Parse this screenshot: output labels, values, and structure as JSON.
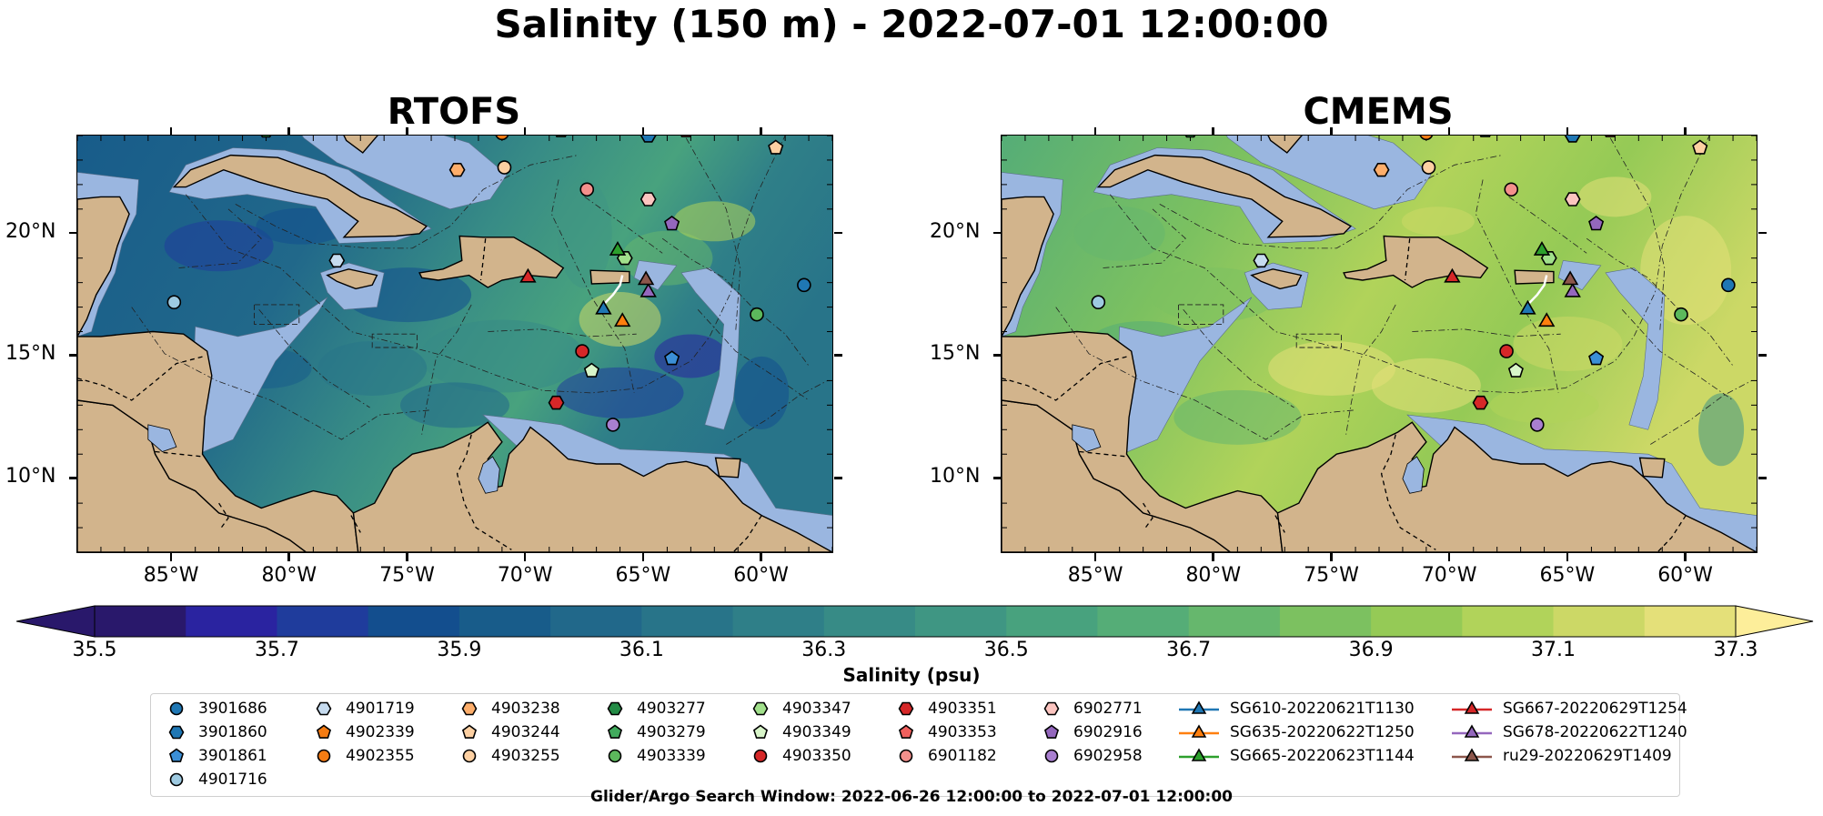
{
  "title": "Salinity (150 m) - 2022-07-01 12:00:00",
  "panels": [
    {
      "title": "RTOFS",
      "scheme": "rtofs"
    },
    {
      "title": "CMEMS",
      "scheme": "cmems"
    }
  ],
  "map": {
    "lon_range": [
      -89,
      -57
    ],
    "lat_range": [
      7,
      24
    ],
    "lon_ticks": [
      {
        "value": -85,
        "label": "85°W"
      },
      {
        "value": -80,
        "label": "80°W"
      },
      {
        "value": -75,
        "label": "75°W"
      },
      {
        "value": -70,
        "label": "70°W"
      },
      {
        "value": -65,
        "label": "65°W"
      },
      {
        "value": -60,
        "label": "60°W"
      }
    ],
    "lat_ticks": [
      {
        "value": 20,
        "label": "20°N"
      },
      {
        "value": 15,
        "label": "15°N"
      },
      {
        "value": 10,
        "label": "10°N"
      }
    ],
    "colors": {
      "land": "#d2b48c",
      "shelf": "#9ab6e0",
      "deep": "#2b1d6b"
    }
  },
  "colorbar": {
    "label": "Salinity (psu)",
    "vmin": 35.5,
    "vmax": 37.3,
    "step": 0.1,
    "ticks": [
      "35.5",
      "35.7",
      "35.9",
      "36.1",
      "36.3",
      "36.5",
      "36.7",
      "36.9",
      "37.1",
      "37.3"
    ],
    "colormap": "haline",
    "colors": [
      "#29186b",
      "#2a23a0",
      "#1f3c9c",
      "#134e8e",
      "#185c8a",
      "#21688a",
      "#287489",
      "#2f7f88",
      "#378b86",
      "#3f9683",
      "#48a27e",
      "#55ad77",
      "#66b76d",
      "#7cc160",
      "#95ca56",
      "#b1d35a",
      "#ccd866",
      "#e4e079",
      "#fdee9a"
    ]
  },
  "observations": [
    {
      "id": "3901686",
      "marker": "circle",
      "color": "#1f77b4",
      "lon": -58.2,
      "lat": 17.9
    },
    {
      "id": "3901860",
      "marker": "hexagon",
      "color": "#1f77b4",
      "lon": -64.8,
      "lat": 24.0
    },
    {
      "id": "3901861",
      "marker": "pentagon",
      "color": "#3b8fd6",
      "lon": -63.8,
      "lat": 14.9
    },
    {
      "id": "4901716",
      "marker": "circle",
      "color": "#9ecae1",
      "lon": -84.9,
      "lat": 17.2
    },
    {
      "id": "4901719",
      "marker": "hexagon",
      "color": "#c6dbef",
      "lon": -78.0,
      "lat": 18.9
    },
    {
      "id": "4902339",
      "marker": "pentagon",
      "color": "#f57c13",
      "lon": -70.2,
      "lat": 24.3
    },
    {
      "id": "4902355",
      "marker": "circle",
      "color": "#f57c13",
      "lon": -71.0,
      "lat": 24.1
    },
    {
      "id": "4903238",
      "marker": "hexagon",
      "color": "#fdae6b",
      "lon": -72.9,
      "lat": 22.6
    },
    {
      "id": "4903244",
      "marker": "pentagon",
      "color": "#fdd0a2",
      "lon": -59.4,
      "lat": 23.5
    },
    {
      "id": "4903255",
      "marker": "circle",
      "color": "#fdd0a2",
      "lon": -70.9,
      "lat": 22.7
    },
    {
      "id": "4903277",
      "marker": "hexagon",
      "color": "#238b45",
      "lon": -81.0,
      "lat": 24.2
    },
    {
      "id": "4903279",
      "marker": "pentagon",
      "color": "#41ab5d",
      "lon": -68.5,
      "lat": 24.2
    },
    {
      "id": "4903339",
      "marker": "circle",
      "color": "#5cb85c",
      "lon": -60.2,
      "lat": 16.7
    },
    {
      "id": "4903347",
      "marker": "hexagon",
      "color": "#a1e08b",
      "lon": -65.8,
      "lat": 19.0
    },
    {
      "id": "4903349",
      "marker": "pentagon",
      "color": "#d8f5c9",
      "lon": -67.2,
      "lat": 14.4
    },
    {
      "id": "4903350",
      "marker": "circle",
      "color": "#d62728",
      "lon": -67.6,
      "lat": 15.2
    },
    {
      "id": "4903351",
      "marker": "hexagon",
      "color": "#d62728",
      "lon": -68.7,
      "lat": 13.1
    },
    {
      "id": "4903353",
      "marker": "pentagon",
      "color": "#f0605d",
      "lon": -63.2,
      "lat": 24.2
    },
    {
      "id": "6901182",
      "marker": "circle",
      "color": "#f4908c",
      "lon": -67.4,
      "lat": 21.8
    },
    {
      "id": "6902771",
      "marker": "hexagon",
      "color": "#fcc5c0",
      "lon": -64.8,
      "lat": 21.4
    },
    {
      "id": "6902916",
      "marker": "pentagon",
      "color": "#9467bd",
      "lon": -63.8,
      "lat": 20.4
    },
    {
      "id": "6902958",
      "marker": "circle",
      "color": "#a97fd0",
      "lon": -66.3,
      "lat": 12.2
    }
  ],
  "gliders": [
    {
      "id": "SG610-20220621T1130",
      "color": "#1f77b4",
      "lon": -66.7,
      "lat": 16.9
    },
    {
      "id": "SG635-20220622T1250",
      "color": "#ff7f0e",
      "lon": -65.9,
      "lat": 16.4
    },
    {
      "id": "SG665-20220623T1144",
      "color": "#2ca02c",
      "lon": -66.1,
      "lat": 19.3
    },
    {
      "id": "SG667-20220629T1254",
      "color": "#d62728",
      "lon": -69.9,
      "lat": 18.2
    },
    {
      "id": "SG678-20220622T1240",
      "color": "#9467bd",
      "lon": -64.8,
      "lat": 17.6
    },
    {
      "id": "ru29-20220629T1409",
      "color": "#8c564b",
      "lon": -64.9,
      "lat": 18.1
    }
  ],
  "footer": "Glider/Argo Search Window: 2022-06-26 12:00:00 to 2022-07-01 12:00:00"
}
